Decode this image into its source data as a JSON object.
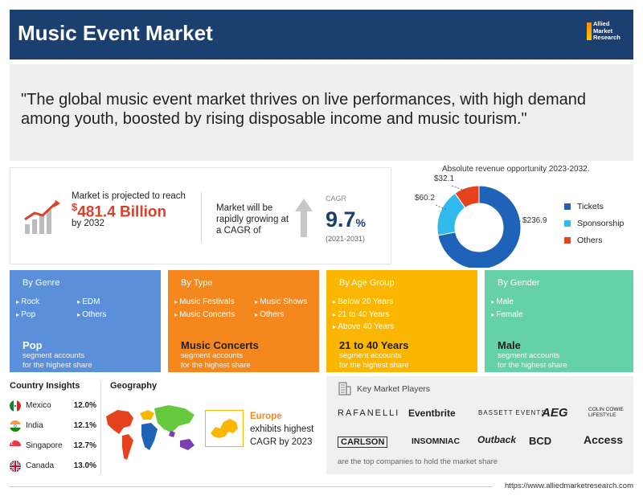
{
  "header": {
    "title": "Music Event Market",
    "logo_text": [
      "Allied",
      "Market",
      "Research"
    ]
  },
  "quote": "\"The global music event market thrives on live performances, with high demand among youth, boosted by rising disposable income and music tourism.\"",
  "stats": {
    "projection_pre": "Market is projected to reach",
    "currency": "$",
    "projection_value": "481.4 Billion",
    "projection_post": "by 2032",
    "growth_text": "Market will be rapidly growing at a CAGR of",
    "cagr_label": "CAGR",
    "cagr_value": "9.7",
    "cagr_unit": "%",
    "cagr_period": "(2021-2031)"
  },
  "revenue": {
    "title": "Absolute revenue opportunity 2023-2032.",
    "legend": [
      "Tickets",
      "Sponsorship",
      "Others"
    ],
    "colors": [
      "#1e63b8",
      "#2fb9ec",
      "#e4431e"
    ],
    "labels": [
      "$236.9",
      "$60.2",
      "$32.1"
    ]
  },
  "chart_data": {
    "type": "pie",
    "title": "Absolute revenue opportunity 2023-2032.",
    "categories": [
      "Tickets",
      "Sponsorship",
      "Others"
    ],
    "values": [
      236.9,
      60.2,
      32.1
    ],
    "legend": "right"
  },
  "segments": [
    {
      "title": "By Genre",
      "items": [
        "Rock",
        "Pop",
        "EDM",
        "Others"
      ],
      "highlight": "Pop",
      "sub": [
        "segment accounts",
        "for the highest share"
      ]
    },
    {
      "title": "By Type",
      "items": [
        "Music Festivals",
        "Music Concerts",
        "Music Shows",
        "Others"
      ],
      "highlight": "Music Concerts",
      "sub": [
        "segment accounts",
        "for the highest share"
      ]
    },
    {
      "title": "By Age Group",
      "items": [
        "Below 20 Years",
        "21 to 40 Years",
        "Above 40 Years"
      ],
      "highlight": "21 to 40 Years",
      "sub": [
        "segment accounts",
        "for the highest share"
      ]
    },
    {
      "title": "By Gender",
      "items": [
        "Male",
        "Female"
      ],
      "highlight": "Male",
      "sub": [
        "segment accounts",
        "for the highest share"
      ]
    }
  ],
  "country_insights": {
    "title": "Country Insights",
    "rows": [
      {
        "name": "Mexico",
        "value": "12.0%"
      },
      {
        "name": "India",
        "value": "12.1%"
      },
      {
        "name": "Singapore",
        "value": "12.7%"
      },
      {
        "name": "Canada",
        "value": "13.0%"
      }
    ]
  },
  "geography": {
    "title": "Geography",
    "region": "Europe",
    "line2": "exhibits highest",
    "line3": "CAGR by 2023"
  },
  "players": {
    "title": "Key Market Players",
    "names": [
      "RAFANELLI",
      "Eventbrite",
      "BASSETT EVENTS",
      "AEG",
      "COLIN COWIE LIFESTYLE",
      "CARLSON",
      "INSOMNIAC",
      "Outback",
      "BCD",
      "Access"
    ],
    "footer": "are the top companies to hold the market share"
  },
  "footer": {
    "url": "https://www.alliedmarketresearch.com"
  }
}
